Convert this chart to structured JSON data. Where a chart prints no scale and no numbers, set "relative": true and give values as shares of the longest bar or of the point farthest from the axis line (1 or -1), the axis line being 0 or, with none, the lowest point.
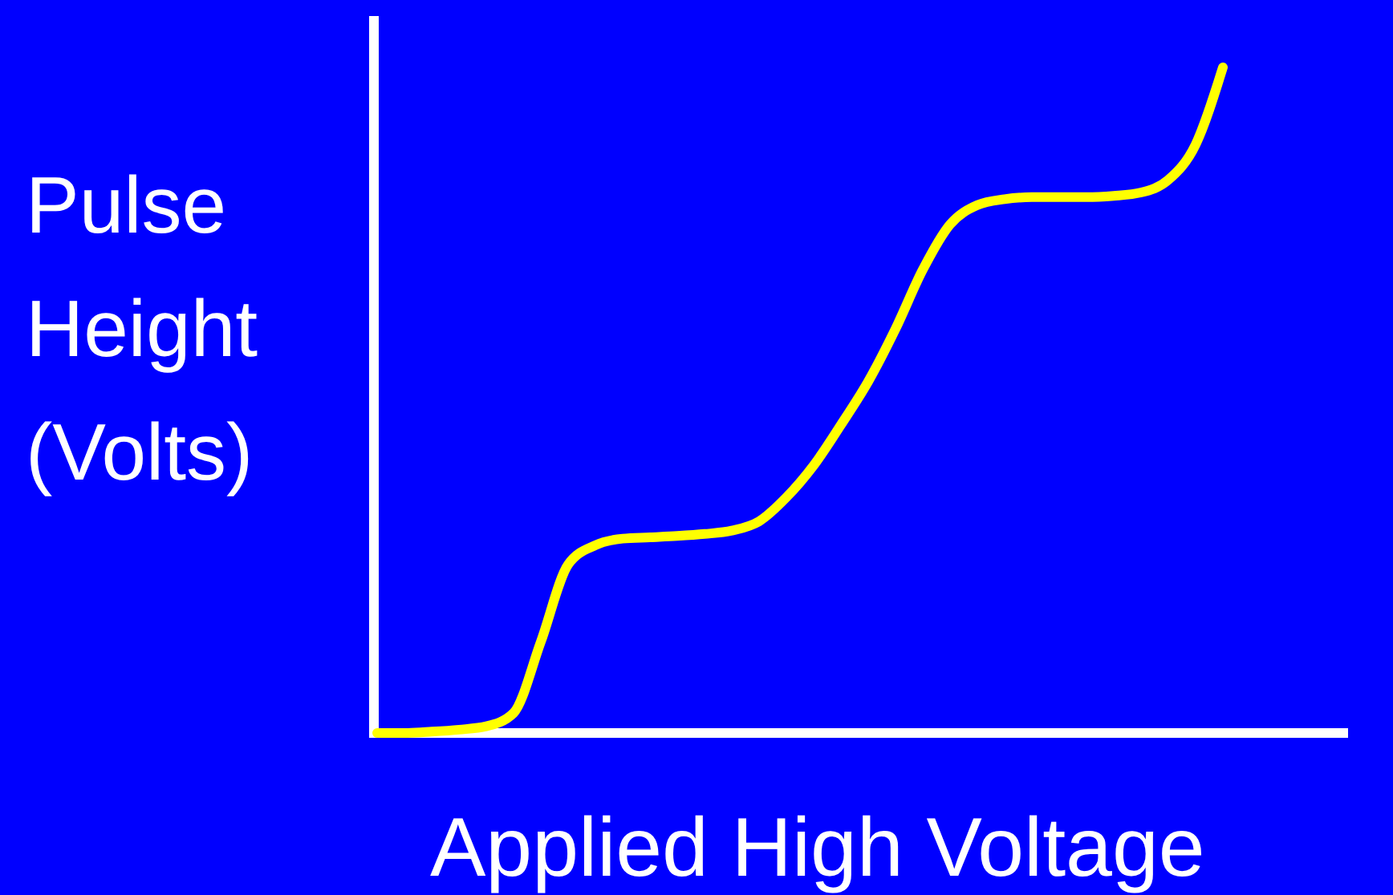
{
  "chart_data": {
    "type": "line",
    "relative": true,
    "xlabel": "Applied High Voltage",
    "ylabel": "Pulse Height (Volts)",
    "categories": [
      null,
      null,
      null,
      null,
      null,
      null,
      null,
      null,
      null,
      null,
      null,
      null,
      null,
      null,
      null,
      null,
      null,
      null,
      null,
      null,
      null,
      null,
      null,
      null,
      null,
      null,
      null,
      null,
      null,
      null,
      null,
      null
    ],
    "series": [
      {
        "color": "#ffff00",
        "values": [
          0,
          0,
          0.002,
          0.005,
          0.01,
          0.03,
          0.137,
          0.253,
          0.282,
          0.292,
          0.294,
          0.296,
          0.299,
          0.304,
          0.318,
          0.354,
          0.402,
          0.463,
          0.528,
          0.607,
          0.696,
          0.764,
          0.793,
          0.802,
          0.805,
          0.805,
          0.805,
          0.807,
          0.812,
          0.831,
          0.884,
          1
        ]
      }
    ]
  }
}
